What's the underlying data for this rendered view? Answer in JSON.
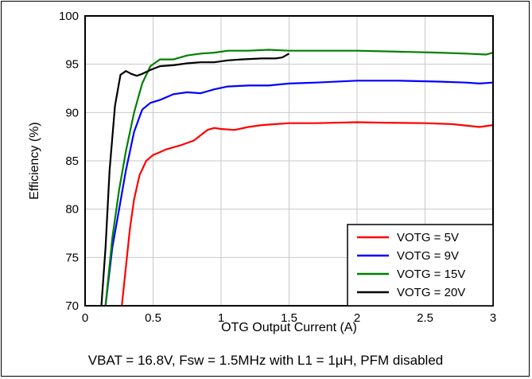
{
  "chart_data": {
    "type": "line",
    "xlabel": "OTG Output Current (A)",
    "ylabel": "Efficiency (%)",
    "caption": "VBAT = 16.8V, Fsw = 1.5MHz with L1 = 1µH, PFM disabled",
    "xlim": [
      0,
      3
    ],
    "ylim": [
      70,
      100
    ],
    "x_ticks": [
      0,
      0.5,
      1,
      1.5,
      2,
      2.5,
      3
    ],
    "x_tick_labels": [
      "0",
      "0.5",
      "1",
      "1.5",
      "2",
      "2.5",
      "3"
    ],
    "y_ticks": [
      70,
      75,
      80,
      85,
      90,
      95,
      100
    ],
    "y_tick_labels": [
      "70",
      "75",
      "80",
      "85",
      "90",
      "95",
      "100"
    ],
    "grid": true,
    "legend_position": "bottom-right",
    "series": [
      {
        "name": "VOTG = 5V",
        "color": "#ff0000",
        "points": [
          [
            0.27,
            70
          ],
          [
            0.3,
            74
          ],
          [
            0.33,
            78
          ],
          [
            0.36,
            81
          ],
          [
            0.4,
            83.5
          ],
          [
            0.45,
            85
          ],
          [
            0.5,
            85.6
          ],
          [
            0.55,
            85.9
          ],
          [
            0.6,
            86.2
          ],
          [
            0.7,
            86.6
          ],
          [
            0.8,
            87.1
          ],
          [
            0.9,
            88.2
          ],
          [
            0.95,
            88.4
          ],
          [
            1.0,
            88.3
          ],
          [
            1.1,
            88.2
          ],
          [
            1.2,
            88.5
          ],
          [
            1.3,
            88.7
          ],
          [
            1.4,
            88.8
          ],
          [
            1.5,
            88.9
          ],
          [
            1.7,
            88.9
          ],
          [
            2.0,
            89.0
          ],
          [
            2.2,
            88.95
          ],
          [
            2.5,
            88.9
          ],
          [
            2.7,
            88.8
          ],
          [
            2.9,
            88.5
          ],
          [
            3.0,
            88.7
          ]
        ]
      },
      {
        "name": "VOTG = 9V",
        "color": "#0000ff",
        "points": [
          [
            0.15,
            70
          ],
          [
            0.2,
            76
          ],
          [
            0.25,
            80
          ],
          [
            0.3,
            84
          ],
          [
            0.36,
            88
          ],
          [
            0.42,
            90.3
          ],
          [
            0.48,
            91
          ],
          [
            0.55,
            91.3
          ],
          [
            0.65,
            91.9
          ],
          [
            0.75,
            92.1
          ],
          [
            0.85,
            92.0
          ],
          [
            0.95,
            92.4
          ],
          [
            1.05,
            92.7
          ],
          [
            1.2,
            92.8
          ],
          [
            1.35,
            92.8
          ],
          [
            1.5,
            93.0
          ],
          [
            1.7,
            93.1
          ],
          [
            2.0,
            93.3
          ],
          [
            2.3,
            93.3
          ],
          [
            2.6,
            93.2
          ],
          [
            2.8,
            93.1
          ],
          [
            2.9,
            93.0
          ],
          [
            3.0,
            93.1
          ]
        ]
      },
      {
        "name": "VOTG = 15V",
        "color": "#008000",
        "points": [
          [
            0.15,
            70
          ],
          [
            0.2,
            77
          ],
          [
            0.25,
            82
          ],
          [
            0.3,
            86
          ],
          [
            0.36,
            90
          ],
          [
            0.42,
            93
          ],
          [
            0.48,
            94.8
          ],
          [
            0.55,
            95.5
          ],
          [
            0.65,
            95.5
          ],
          [
            0.75,
            95.9
          ],
          [
            0.85,
            96.1
          ],
          [
            0.95,
            96.2
          ],
          [
            1.05,
            96.4
          ],
          [
            1.2,
            96.4
          ],
          [
            1.35,
            96.5
          ],
          [
            1.5,
            96.4
          ],
          [
            1.7,
            96.4
          ],
          [
            2.0,
            96.4
          ],
          [
            2.3,
            96.3
          ],
          [
            2.6,
            96.2
          ],
          [
            2.8,
            96.1
          ],
          [
            2.95,
            96.0
          ],
          [
            3.0,
            96.2
          ]
        ]
      },
      {
        "name": "VOTG = 20V",
        "color": "#000000",
        "points": [
          [
            0.12,
            70
          ],
          [
            0.15,
            76
          ],
          [
            0.18,
            84
          ],
          [
            0.22,
            90.7
          ],
          [
            0.26,
            93.9
          ],
          [
            0.3,
            94.3
          ],
          [
            0.34,
            94.0
          ],
          [
            0.38,
            93.8
          ],
          [
            0.42,
            94.0
          ],
          [
            0.48,
            94.4
          ],
          [
            0.55,
            94.8
          ],
          [
            0.65,
            94.9
          ],
          [
            0.75,
            95.1
          ],
          [
            0.85,
            95.2
          ],
          [
            0.95,
            95.2
          ],
          [
            1.05,
            95.4
          ],
          [
            1.15,
            95.5
          ],
          [
            1.3,
            95.6
          ],
          [
            1.4,
            95.6
          ],
          [
            1.45,
            95.7
          ],
          [
            1.5,
            96.1
          ]
        ]
      }
    ]
  }
}
